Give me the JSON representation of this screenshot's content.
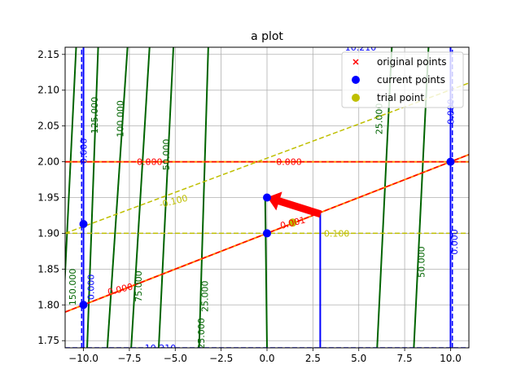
{
  "chart_data": {
    "type": "line",
    "title": "a plot",
    "xlabel": "",
    "ylabel": "",
    "xlim": [
      -11,
      11
    ],
    "ylim": [
      1.74,
      2.16
    ],
    "xticks": [
      "−10.0",
      "−7.5",
      "−5.0",
      "−2.5",
      "0.0",
      "2.5",
      "5.0",
      "7.5",
      "10.0"
    ],
    "xtick_values": [
      -10,
      -7.5,
      -5,
      -2.5,
      0,
      2.5,
      5,
      7.5,
      10
    ],
    "yticks": [
      "1.75",
      "1.80",
      "1.85",
      "1.90",
      "1.95",
      "2.00",
      "2.05",
      "2.10",
      "2.15"
    ],
    "ytick_values": [
      1.75,
      1.8,
      1.85,
      1.9,
      1.95,
      2.0,
      2.05,
      2.1,
      2.15
    ],
    "grid": true,
    "legend": {
      "placement": "top-right",
      "entries": [
        {
          "label": "original points",
          "marker": "x",
          "color": "#ff0000"
        },
        {
          "label": "current points",
          "marker": "circle",
          "color": "#0000ff"
        },
        {
          "label": "trial point",
          "marker": "circle",
          "color": "#bfbf00"
        }
      ]
    },
    "series": [
      {
        "name": "original points",
        "kind": "scatter",
        "color": "#ff0000",
        "points": [
          [
            0,
            1.9
          ],
          [
            10,
            2.0
          ],
          [
            -10,
            1.8
          ],
          [
            0,
            1.95
          ]
        ]
      },
      {
        "name": "current points",
        "kind": "scatter",
        "color": "#0000ff",
        "points": [
          [
            0,
            1.95
          ],
          [
            0,
            1.9
          ],
          [
            10,
            2.0
          ],
          [
            -10,
            1.8
          ],
          [
            -10,
            1.913
          ]
        ]
      },
      {
        "name": "trial point",
        "kind": "scatter",
        "color": "#bfbf00",
        "points": [
          [
            1.4,
            1.915
          ]
        ]
      }
    ],
    "lines": [
      {
        "label": "orange line",
        "color": "#ff8c00",
        "style": "solid",
        "points": [
          [
            -11,
            1.79
          ],
          [
            11,
            2.01
          ]
        ]
      },
      {
        "label": "red dashed line",
        "color": "#ff0000",
        "style": "dashed",
        "points": [
          [
            -11,
            1.79
          ],
          [
            11,
            2.01
          ]
        ]
      },
      {
        "label": "orange level 2.00",
        "color": "#ff8c00",
        "style": "solid",
        "points": [
          [
            -11,
            2.0
          ],
          [
            11,
            2.0
          ]
        ]
      },
      {
        "label": "red dashed level 2.00",
        "color": "#ff0000",
        "style": "dashed",
        "points": [
          [
            -11,
            2.0
          ],
          [
            11,
            2.0
          ]
        ]
      },
      {
        "label": "yellow dashed level 1.90",
        "color": "#bfbf00",
        "style": "dashed",
        "points": [
          [
            -11,
            1.9
          ],
          [
            11,
            1.9
          ]
        ]
      },
      {
        "label": "yellow dashed slope",
        "color": "#bfbf00",
        "style": "dashed",
        "points": [
          [
            -11,
            1.9
          ],
          [
            11,
            2.11
          ]
        ]
      }
    ],
    "blue_lines": [
      {
        "style": "solid",
        "points": [
          [
            -10.0,
            1.74
          ],
          [
            -10.0,
            2.16
          ]
        ]
      },
      {
        "style": "dashed",
        "points": [
          [
            -10.1,
            1.74
          ],
          [
            -10.1,
            2.16
          ]
        ]
      },
      {
        "style": "solid",
        "points": [
          [
            10.0,
            1.74
          ],
          [
            10.0,
            2.16
          ]
        ]
      },
      {
        "style": "dashed",
        "points": [
          [
            10.1,
            1.74
          ],
          [
            10.1,
            2.16
          ]
        ]
      },
      {
        "style": "dashed",
        "points": [
          [
            -11,
            1.74
          ],
          [
            11,
            1.74
          ]
        ]
      },
      {
        "style": "solid",
        "points": [
          [
            2.9,
            1.74
          ],
          [
            2.9,
            1.93
          ]
        ]
      }
    ],
    "contours": [
      {
        "value": "150.000",
        "color": "#006400",
        "points": [
          [
            -11.2,
            1.74
          ],
          [
            -10.4,
            2.16
          ]
        ]
      },
      {
        "value": "125.000",
        "color": "#006400",
        "points": [
          [
            -9.8,
            1.74
          ],
          [
            -9.2,
            2.16
          ]
        ]
      },
      {
        "value": "100.000",
        "color": "#006400",
        "points": [
          [
            -8.7,
            1.74
          ],
          [
            -7.6,
            2.16
          ]
        ]
      },
      {
        "value": "75.000",
        "color": "#006400",
        "points": [
          [
            -7.4,
            1.74
          ],
          [
            -6.4,
            2.16
          ]
        ]
      },
      {
        "value": "50.000",
        "color": "#006400",
        "points": [
          [
            -5.9,
            1.74
          ],
          [
            -5.1,
            2.16
          ]
        ]
      },
      {
        "value": "25.000",
        "color": "#006400",
        "points": [
          [
            -3.7,
            1.74
          ],
          [
            -3.2,
            2.16
          ]
        ]
      },
      {
        "value": "0",
        "color": "#006400",
        "points": [
          [
            0.0,
            1.74
          ],
          [
            -0.1,
            1.95
          ]
        ]
      },
      {
        "value": "25.000",
        "color": "#006400",
        "points": [
          [
            6.0,
            1.74
          ],
          [
            6.8,
            2.16
          ]
        ]
      },
      {
        "value": "50.000",
        "color": "#006400",
        "points": [
          [
            8.0,
            1.74
          ],
          [
            8.8,
            2.16
          ]
        ]
      }
    ],
    "arrow": {
      "color": "#ff0000",
      "from": [
        2.9,
        1.927
      ],
      "to": [
        0.05,
        1.95
      ]
    },
    "annotations": [
      {
        "text": "0.000",
        "color": "#ff0000",
        "x": -6.4,
        "y": 2.0,
        "rotation": 0
      },
      {
        "text": "0.000",
        "color": "#ff0000",
        "x": 1.2,
        "y": 2.0,
        "rotation": 0
      },
      {
        "text": "0.001",
        "color": "#ff0000",
        "x": 1.4,
        "y": 1.915,
        "rotation": -14
      },
      {
        "text": "-0.100",
        "color": "#bfbf00",
        "x": -5.1,
        "y": 1.945,
        "rotation": -14
      },
      {
        "text": "0.100",
        "color": "#bfbf00",
        "x": 3.8,
        "y": 1.9,
        "rotation": 0
      },
      {
        "text": "0.000",
        "color": "#ff0000",
        "x": -8.0,
        "y": 1.822,
        "rotation": -14
      },
      {
        "text": "0.000",
        "color": "#0000ff",
        "x": -10.0,
        "y": 2.015,
        "rotation": -90
      },
      {
        "text": "0.000",
        "color": "#0000ff",
        "x": 10.0,
        "y": 2.07,
        "rotation": -90
      },
      {
        "text": "0.000",
        "color": "#0000ff",
        "x": 10.2,
        "y": 1.888,
        "rotation": -90
      },
      {
        "text": "0.000",
        "color": "#0000ff",
        "x": -9.6,
        "y": 1.825,
        "rotation": -90
      },
      {
        "text": "-10.210",
        "color": "#0000ff",
        "x": -5.9,
        "y": 1.74,
        "rotation": 0
      },
      {
        "text": "10.210",
        "color": "#0000ff",
        "x": 5.1,
        "y": 2.16,
        "rotation": 0
      },
      {
        "text": "150.000",
        "color": "#006400",
        "x": -10.6,
        "y": 1.825,
        "rotation": -90
      },
      {
        "text": "125.000",
        "color": "#006400",
        "x": -9.4,
        "y": 2.065,
        "rotation": -90
      },
      {
        "text": "100.000",
        "color": "#006400",
        "x": -8.0,
        "y": 2.06,
        "rotation": -90
      },
      {
        "text": "75.000",
        "color": "#006400",
        "x": -7.0,
        "y": 1.826,
        "rotation": -90
      },
      {
        "text": "50.000",
        "color": "#006400",
        "x": -5.5,
        "y": 2.01,
        "rotation": -90
      },
      {
        "text": "25.000",
        "color": "#006400",
        "x": -3.4,
        "y": 1.812,
        "rotation": -90
      },
      {
        "text": "25.000",
        "color": "#006400",
        "x": -3.6,
        "y": 1.76,
        "rotation": -90
      },
      {
        "text": "25.000",
        "color": "#006400",
        "x": 6.1,
        "y": 2.06,
        "rotation": -90
      },
      {
        "text": "50.000",
        "color": "#006400",
        "x": 8.4,
        "y": 1.86,
        "rotation": -90
      }
    ]
  }
}
